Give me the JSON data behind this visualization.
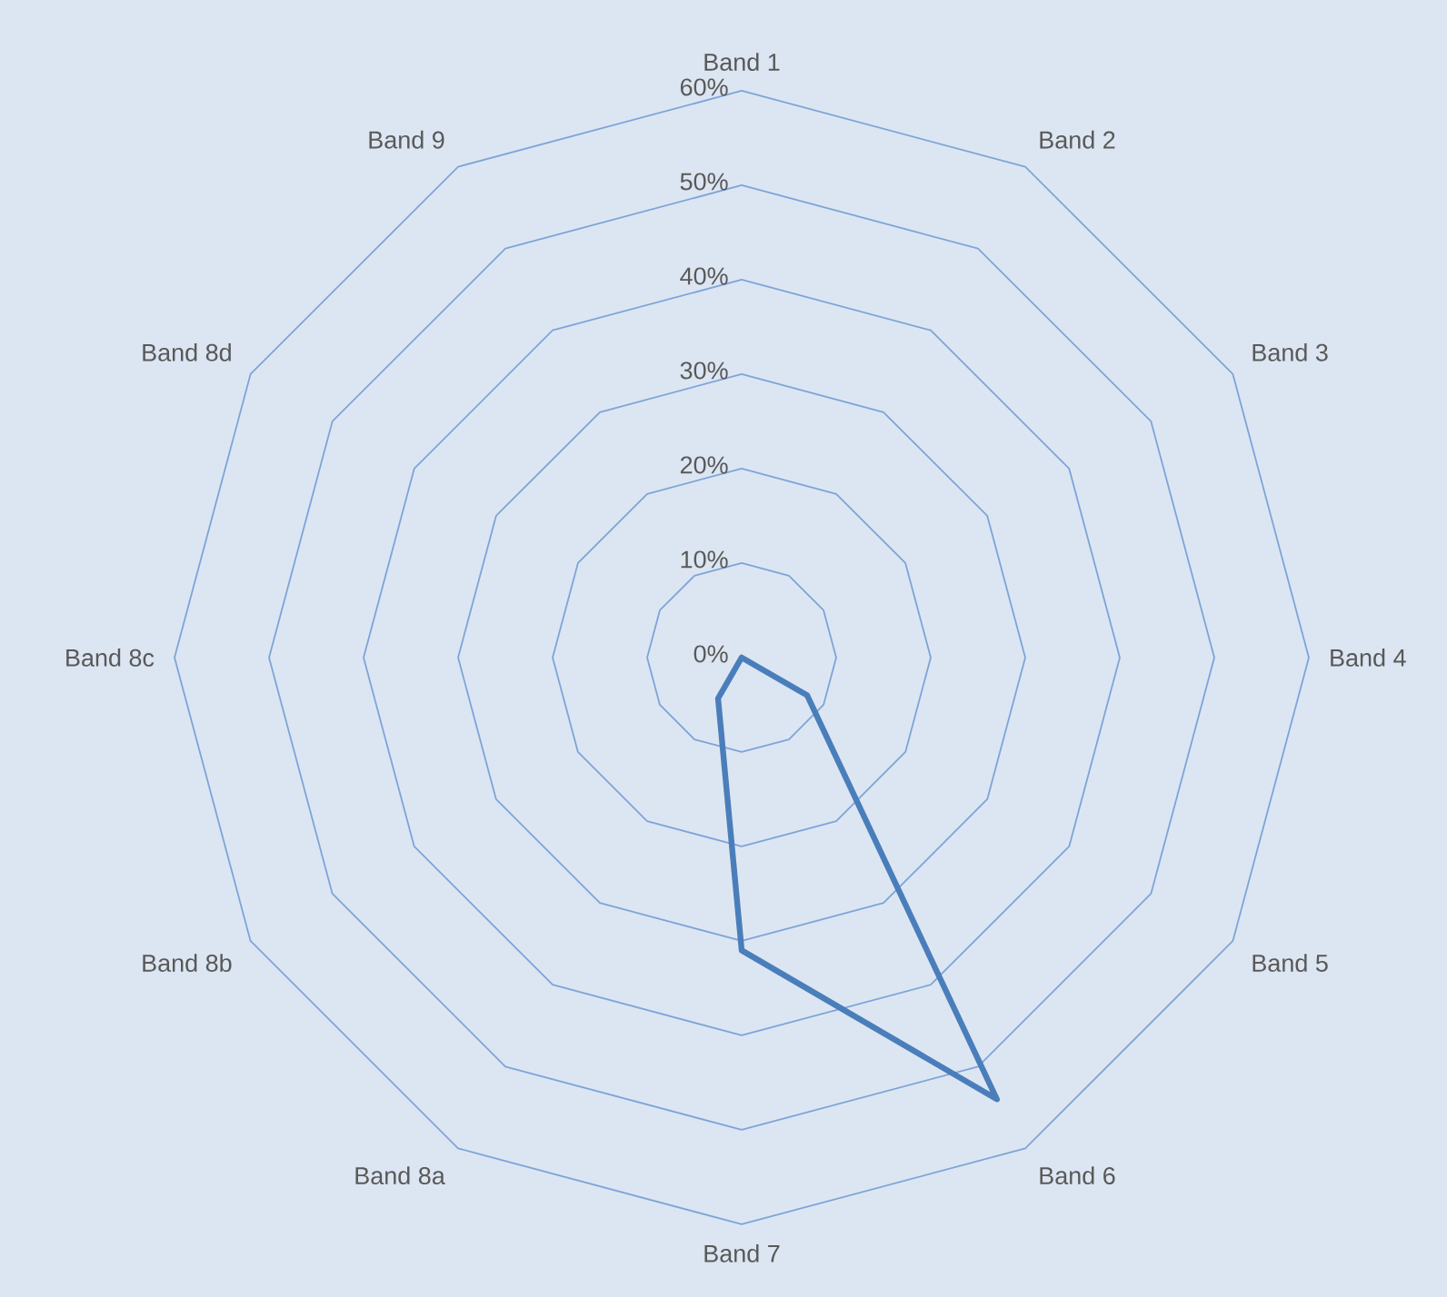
{
  "chart_data": {
    "type": "radar",
    "categories": [
      "Band 1",
      "Band 2",
      "Band 3",
      "Band 4",
      "Band 5",
      "Band 6",
      "Band 7",
      "Band 8a",
      "Band 8b",
      "Band 8c",
      "Band 8d",
      "Band 9"
    ],
    "series": [
      {
        "color": "#4a7ebb",
        "values": [
          0,
          0,
          0,
          0,
          8,
          54,
          31,
          5,
          0,
          0,
          0,
          0
        ]
      }
    ],
    "ylim": [
      0,
      60
    ],
    "yticks": [
      {
        "value": 0,
        "label": "0%"
      },
      {
        "value": 10,
        "label": "10%"
      },
      {
        "value": 20,
        "label": "20%"
      },
      {
        "value": 30,
        "label": "30%"
      },
      {
        "value": 40,
        "label": "40%"
      },
      {
        "value": 50,
        "label": "50%"
      },
      {
        "value": 60,
        "label": "60%"
      }
    ],
    "grid": true
  }
}
